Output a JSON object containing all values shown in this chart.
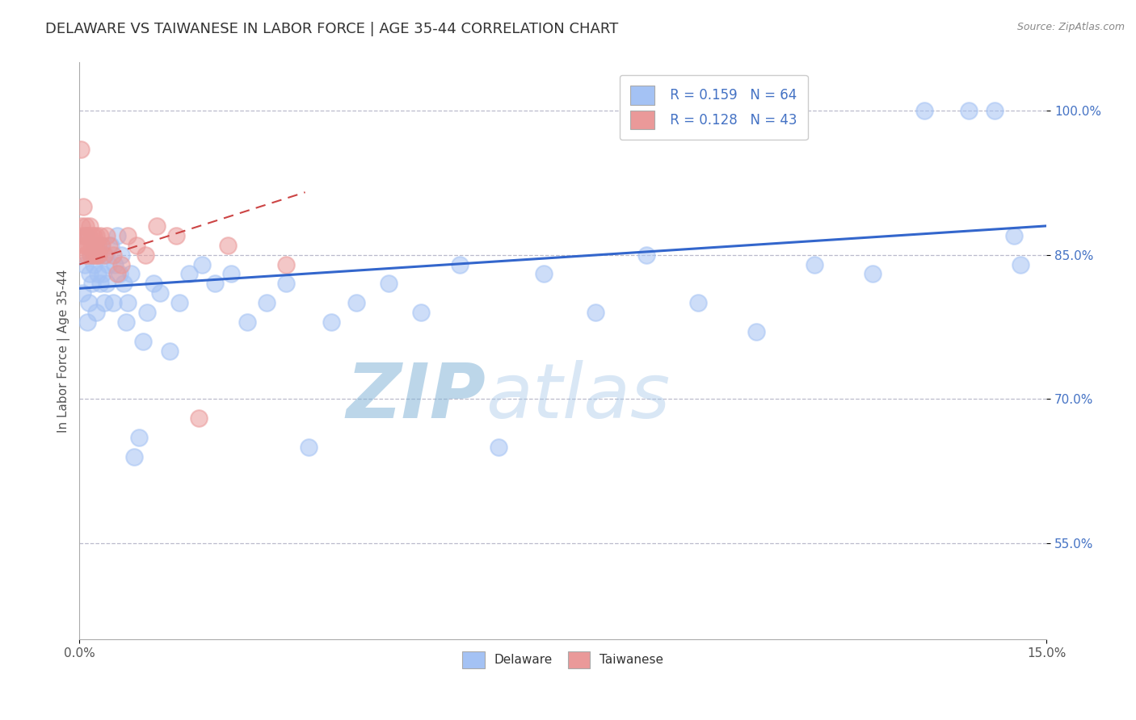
{
  "title": "DELAWARE VS TAIWANESE IN LABOR FORCE | AGE 35-44 CORRELATION CHART",
  "source_text": "Source: ZipAtlas.com",
  "ylabel": "In Labor Force | Age 35-44",
  "xlim": [
    0.0,
    15.0
  ],
  "ylim": [
    45.0,
    105.0
  ],
  "xticks": [
    0.0,
    15.0
  ],
  "xticklabels": [
    "0.0%",
    "15.0%"
  ],
  "yticks": [
    55.0,
    70.0,
    85.0,
    100.0
  ],
  "yticklabels": [
    "55.0%",
    "70.0%",
    "85.0%",
    "100.0%"
  ],
  "delaware_R": 0.159,
  "delaware_N": 64,
  "taiwanese_R": 0.128,
  "taiwanese_N": 43,
  "delaware_color": "#a4c2f4",
  "taiwanese_color": "#ea9999",
  "trend_delaware_color": "#3366cc",
  "trend_taiwanese_color": "#cc4444",
  "background_color": "#ffffff",
  "grid_color": "#bbbbcc",
  "watermark_color": "#cce0f5",
  "title_fontsize": 13,
  "axis_label_fontsize": 11,
  "tick_fontsize": 11,
  "legend_fontsize": 12,
  "ytick_color": "#4472c4",
  "delaware_x": [
    0.05,
    0.08,
    0.1,
    0.12,
    0.14,
    0.16,
    0.18,
    0.2,
    0.22,
    0.24,
    0.26,
    0.28,
    0.3,
    0.32,
    0.34,
    0.36,
    0.38,
    0.4,
    0.42,
    0.45,
    0.48,
    0.52,
    0.55,
    0.58,
    0.62,
    0.65,
    0.68,
    0.72,
    0.75,
    0.8,
    0.85,
    0.92,
    0.98,
    1.05,
    1.15,
    1.25,
    1.4,
    1.55,
    1.7,
    1.9,
    2.1,
    2.35,
    2.6,
    2.9,
    3.2,
    3.55,
    3.9,
    4.3,
    4.8,
    5.3,
    5.9,
    6.5,
    7.2,
    8.0,
    8.8,
    9.6,
    10.5,
    11.4,
    12.3,
    13.1,
    13.8,
    14.2,
    14.5,
    14.6
  ],
  "delaware_y": [
    81.0,
    84.0,
    87.0,
    78.0,
    80.0,
    83.0,
    85.0,
    82.0,
    84.0,
    86.0,
    79.0,
    83.0,
    85.0,
    82.0,
    86.0,
    83.0,
    80.0,
    85.0,
    82.0,
    84.0,
    86.0,
    80.0,
    84.0,
    87.0,
    83.0,
    85.0,
    82.0,
    78.0,
    80.0,
    83.0,
    64.0,
    66.0,
    76.0,
    79.0,
    82.0,
    81.0,
    75.0,
    80.0,
    83.0,
    84.0,
    82.0,
    83.0,
    78.0,
    80.0,
    82.0,
    65.0,
    78.0,
    80.0,
    82.0,
    79.0,
    84.0,
    65.0,
    83.0,
    79.0,
    85.0,
    80.0,
    77.0,
    84.0,
    83.0,
    100.0,
    100.0,
    100.0,
    87.0,
    84.0
  ],
  "taiwanese_x": [
    0.02,
    0.03,
    0.05,
    0.06,
    0.07,
    0.08,
    0.09,
    0.1,
    0.11,
    0.12,
    0.13,
    0.14,
    0.15,
    0.16,
    0.17,
    0.18,
    0.19,
    0.2,
    0.21,
    0.22,
    0.23,
    0.24,
    0.25,
    0.26,
    0.27,
    0.28,
    0.3,
    0.32,
    0.35,
    0.38,
    0.42,
    0.46,
    0.52,
    0.58,
    0.65,
    0.75,
    0.88,
    1.02,
    1.2,
    1.5,
    1.85,
    2.3,
    3.2
  ],
  "taiwanese_y": [
    96.0,
    88.0,
    87.0,
    90.0,
    86.0,
    85.0,
    88.0,
    87.0,
    86.0,
    85.0,
    87.0,
    86.0,
    87.0,
    88.0,
    85.0,
    86.0,
    87.0,
    86.0,
    85.0,
    87.0,
    86.0,
    85.0,
    86.0,
    87.0,
    85.0,
    86.0,
    85.0,
    87.0,
    86.0,
    85.0,
    87.0,
    86.0,
    85.0,
    83.0,
    84.0,
    87.0,
    86.0,
    85.0,
    88.0,
    87.0,
    68.0,
    86.0,
    84.0
  ],
  "trend_del_x0": 0.0,
  "trend_del_y0": 81.5,
  "trend_del_x1": 15.0,
  "trend_del_y1": 88.0,
  "trend_tai_x0": 0.0,
  "trend_tai_y0": 84.0,
  "trend_tai_x1": 3.5,
  "trend_tai_y1": 91.5
}
